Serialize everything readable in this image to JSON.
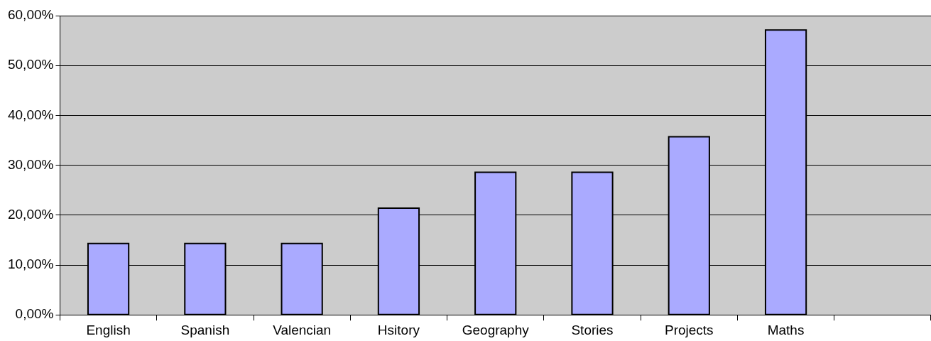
{
  "chart_data": {
    "type": "bar",
    "categories": [
      "English",
      "Spanish",
      "Valencian",
      "Hsitory",
      "Geography",
      "Stories",
      "Projects",
      "Maths",
      null
    ],
    "values": [
      14.3,
      14.3,
      14.3,
      21.4,
      28.6,
      28.6,
      35.7,
      57.1,
      null
    ],
    "color": "#aaaaff",
    "ylim": [
      0,
      60
    ],
    "yticks": [
      {
        "value": 0,
        "label": "0,00%"
      },
      {
        "value": 10,
        "label": "10,00%"
      },
      {
        "value": 20,
        "label": "20,00%"
      },
      {
        "value": 30,
        "label": "30,00%"
      },
      {
        "value": 40,
        "label": "40,00%"
      },
      {
        "value": 50,
        "label": "50,00%"
      },
      {
        "value": 60,
        "label": "60,00%"
      }
    ],
    "grid": "y",
    "legend": false
  }
}
